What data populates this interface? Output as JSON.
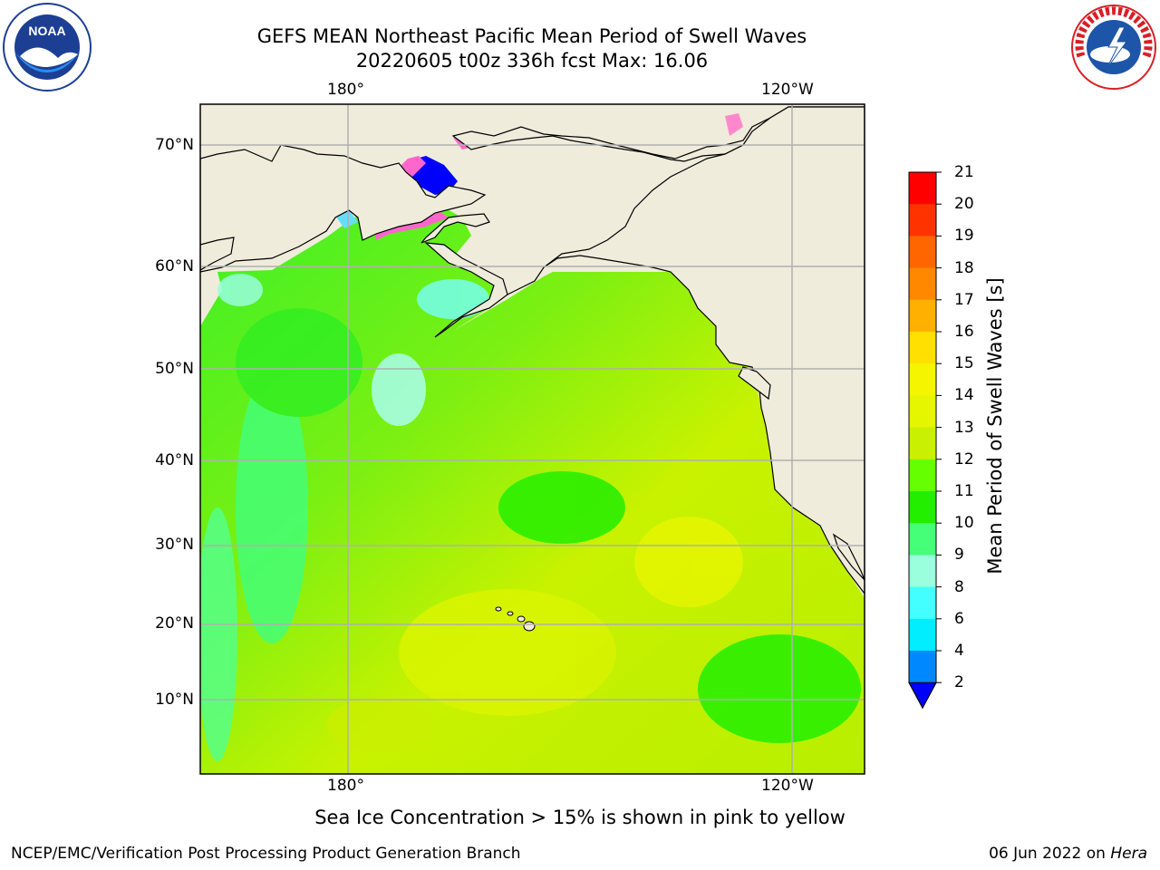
{
  "header": {
    "title_line1": "GEFS MEAN Northeast Pacific Mean Period of Swell Waves",
    "title_line2": "20220605 t00z 336h fcst   Max: 16.06"
  },
  "logos": {
    "left": {
      "icon": "noaa-logo-icon",
      "text": "NOAA"
    },
    "right": {
      "icon": "nws-logo-icon",
      "text": "NATIONAL WEATHER SERVICE"
    }
  },
  "map": {
    "lon_labels_top": [
      "180°",
      "120°W"
    ],
    "lon_labels_bottom": [
      "180°",
      "120°W"
    ],
    "lat_labels": [
      "70°N",
      "60°N",
      "50°N",
      "40°N",
      "30°N",
      "20°N",
      "10°N"
    ],
    "land_color": "#efecdc",
    "coast_color": "#000000",
    "grid_color": "#b0b0b0"
  },
  "colorbar": {
    "label": "Mean Period of Swell Waves [s]",
    "ticks": [
      "21",
      "20",
      "19",
      "18",
      "17",
      "16",
      "15",
      "14",
      "13",
      "12",
      "11",
      "10",
      "9",
      "8",
      "6",
      "4",
      "2"
    ],
    "colors": [
      "#ff0000",
      "#ff3300",
      "#ff6600",
      "#ff8800",
      "#ffb000",
      "#ffe000",
      "#f5f500",
      "#e6f500",
      "#c9f000",
      "#66ff00",
      "#22ee00",
      "#44ff77",
      "#99ffdd",
      "#44ffff",
      "#00eeff",
      "#0088ff",
      "#0000ff"
    ]
  },
  "caption": "Sea Ice Concentration > 15% is shown in pink to yellow",
  "footer": {
    "left": "NCEP/EMC/Verification Post Processing Product Generation Branch",
    "right_prefix": "06 Jun 2022 on ",
    "right_host": "Hera"
  }
}
